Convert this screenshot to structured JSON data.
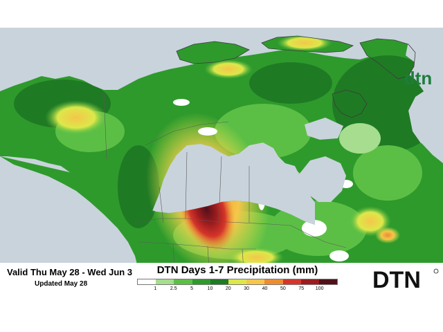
{
  "header": {
    "valid_text": "Valid Thu May 28 - Wed Jun 3",
    "updated_text": "Updated May 28"
  },
  "legend": {
    "title": "DTN Days 1-7 Precipitation (mm)",
    "unit": "mm",
    "labels": [
      "1",
      "2.5",
      "5",
      "10",
      "20",
      "30",
      "40",
      "50",
      "75",
      "100"
    ],
    "colors": [
      "#ffffff",
      "#a6dd8e",
      "#5cbf45",
      "#2e9a2c",
      "#1f7a24",
      "#dce84a",
      "#f5c64a",
      "#ee8d2f",
      "#d5352a",
      "#9b1b1e",
      "#52101a"
    ]
  },
  "brand": {
    "wordmark": "DTN",
    "logo_letters": "dtn",
    "logo_color": "#1d7d3c"
  },
  "colors": {
    "ocean": "#c9d3dc",
    "land_no_rain": "#ffffff",
    "borders": "#5a5a5a"
  }
}
